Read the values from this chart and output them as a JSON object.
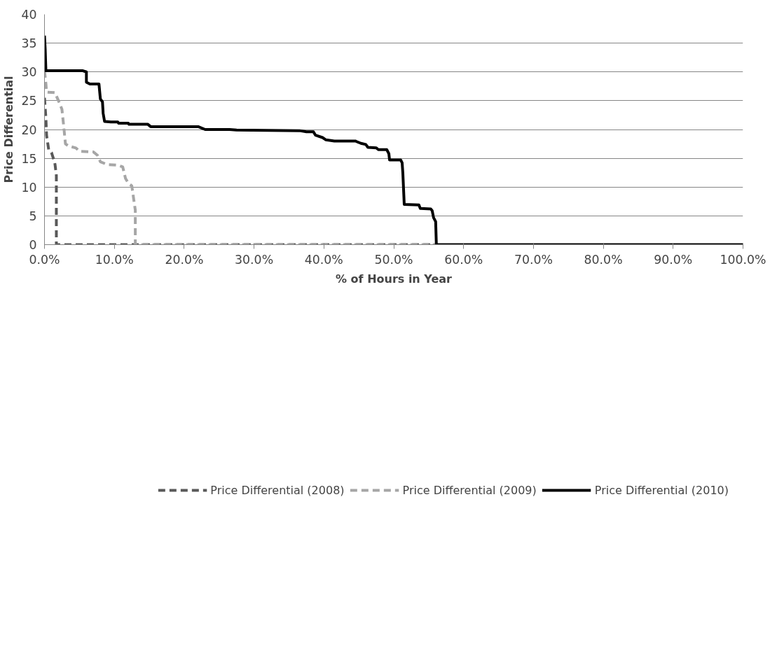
{
  "chart_data": {
    "type": "line",
    "xlabel": "% of Hours in Year",
    "ylabel": "Price Differential",
    "xlim": [
      0,
      100
    ],
    "ylim": [
      0,
      40
    ],
    "xticks": [
      {
        "value": 0,
        "label": "0.0%"
      },
      {
        "value": 10,
        "label": "10.0%"
      },
      {
        "value": 20,
        "label": "20.0%"
      },
      {
        "value": 30,
        "label": "30.0%"
      },
      {
        "value": 40,
        "label": "40.0%"
      },
      {
        "value": 50,
        "label": "50.0%"
      },
      {
        "value": 60,
        "label": "60.0%"
      },
      {
        "value": 70,
        "label": "70.0%"
      },
      {
        "value": 80,
        "label": "80.0%"
      },
      {
        "value": 90,
        "label": "90.0%"
      },
      {
        "value": 100,
        "label": "100.0%"
      }
    ],
    "yticks": [
      0,
      5,
      10,
      15,
      20,
      25,
      30,
      35,
      40
    ],
    "grid": "y",
    "legend": "bottom",
    "marker": "none",
    "series": [
      {
        "name": "Price Differential (2008)",
        "color": "#595959",
        "line_style": "dashed",
        "x": [
          0,
          0.2,
          0.3,
          0.6,
          1.0,
          1.4,
          1.5,
          1.7,
          1.7,
          56.1
        ],
        "values": [
          25.5,
          22,
          19,
          16.5,
          16,
          14.5,
          14.0,
          12,
          0,
          0
        ]
      },
      {
        "name": "Price Differential (2009)",
        "color": "#a6a6a6",
        "line_style": "dashed",
        "x": [
          0,
          0.2,
          0.3,
          1.5,
          2.0,
          2.5,
          2.8,
          3.0,
          3.5,
          4.5,
          5.0,
          7.0,
          7.6,
          8.0,
          9.0,
          10.5,
          11.2,
          11.6,
          12.0,
          12.5,
          12.7,
          13.0,
          13.0,
          56.1
        ],
        "values": [
          30.2,
          28,
          26.5,
          26.4,
          25,
          23.5,
          20,
          17.5,
          17.1,
          16.8,
          16.2,
          16.1,
          15.5,
          14.4,
          13.9,
          13.8,
          13.5,
          11.5,
          10.7,
          10.2,
          8.5,
          6,
          0,
          0
        ]
      },
      {
        "name": "Price Differential (2010)",
        "color": "#000000",
        "line_style": "solid",
        "x": [
          0,
          0.1,
          0.2,
          5.5,
          6.0,
          6.0,
          6.5,
          7.8,
          8.0,
          8.3,
          8.4,
          8.6,
          9.5,
          10.5,
          10.6,
          12.0,
          12.1,
          14.8,
          15.2,
          22.0,
          23.0,
          26.5,
          27.5,
          36.5,
          37.5,
          38.5,
          38.8,
          39.8,
          40.3,
          41.5,
          44.5,
          45.3,
          46.0,
          46.3,
          47.5,
          47.8,
          49.0,
          49.3,
          49.4,
          51.0,
          51.2,
          51.3,
          51.5,
          53.6,
          53.8,
          55.3,
          55.5,
          55.7,
          56.0,
          56.1,
          100
        ],
        "values": [
          36.3,
          34,
          30.2,
          30.2,
          30.0,
          28.2,
          27.9,
          27.9,
          25.3,
          24.8,
          22.8,
          21.4,
          21.3,
          21.3,
          21.1,
          21.1,
          20.9,
          20.9,
          20.5,
          20.5,
          20.0,
          20.0,
          19.9,
          19.8,
          19.6,
          19.6,
          19.0,
          18.6,
          18.2,
          18.0,
          18.0,
          17.6,
          17.4,
          16.9,
          16.8,
          16.5,
          16.5,
          15.8,
          14.7,
          14.7,
          14.2,
          12.5,
          7.0,
          6.9,
          6.3,
          6.2,
          5.9,
          4.7,
          4.0,
          0,
          0
        ]
      }
    ]
  }
}
